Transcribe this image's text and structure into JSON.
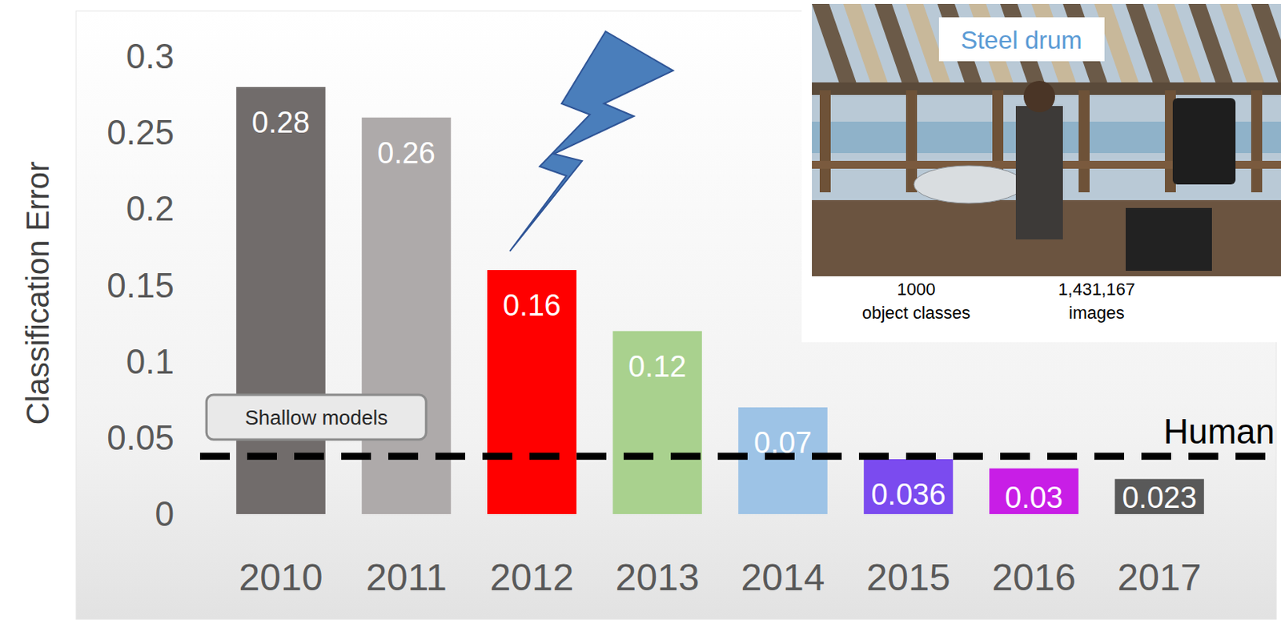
{
  "chart_data": {
    "type": "bar",
    "y_label": "Classification Error",
    "categories": [
      "2010",
      "2011",
      "2012",
      "2013",
      "2014",
      "2015",
      "2016",
      "2017"
    ],
    "values": [
      0.28,
      0.26,
      0.16,
      0.12,
      0.07,
      0.036,
      0.03,
      0.023
    ],
    "colors": [
      "#716c6b",
      "#aeaaaa",
      "#ff0000",
      "#a9d18e",
      "#9dc3e6",
      "#7b4bef",
      "#c81ee6",
      "#595959"
    ],
    "ylim": [
      0,
      0.3
    ],
    "yticks": [
      0,
      0.05,
      0.1,
      0.15,
      0.2,
      0.25,
      0.3
    ],
    "grid": false,
    "data_labels": true,
    "annotations": [
      {
        "text": "Human",
        "y": 0.038
      },
      {
        "text": "Shallow models"
      }
    ],
    "inset": {
      "caption": "Steel drum",
      "stats": [
        [
          "1000",
          "object classes"
        ],
        [
          "1,431,167",
          "images"
        ]
      ]
    }
  }
}
